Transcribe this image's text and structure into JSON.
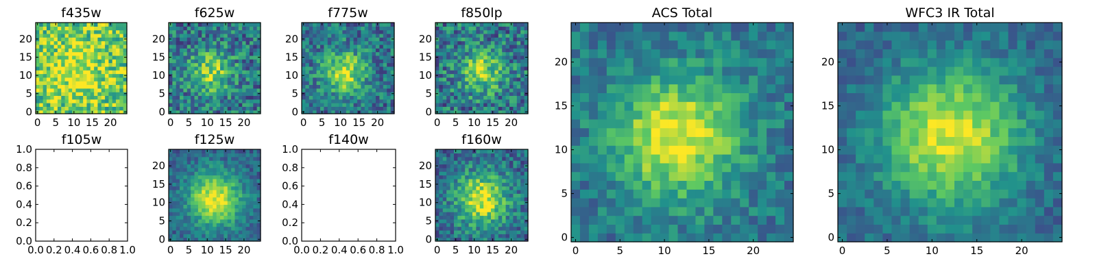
{
  "figure": {
    "colormap": [
      "#440154",
      "#3b528b",
      "#21918c",
      "#5ec962",
      "#fde725"
    ],
    "background": "#ffffff"
  },
  "chart_data": [
    {
      "type": "heatmap",
      "title": "f435w",
      "grid": 25,
      "xlim": [
        -0.5,
        24.5
      ],
      "ylim": [
        -0.5,
        24.5
      ],
      "xticks": [
        0,
        5,
        10,
        15,
        20
      ],
      "yticks": [
        0,
        5,
        10,
        15,
        20
      ],
      "source": {
        "cx": 11,
        "cy": 11,
        "sigma": 6,
        "peak": 0.25,
        "base": 0.72,
        "noise": 0.28
      }
    },
    {
      "type": "heatmap",
      "title": "f625w",
      "grid": 25,
      "xlim": [
        -0.5,
        24.5
      ],
      "ylim": [
        -0.5,
        24.5
      ],
      "xticks": [
        0,
        5,
        10,
        15,
        20
      ],
      "yticks": [
        0,
        5,
        10,
        15,
        20
      ],
      "source": {
        "cx": 11,
        "cy": 11,
        "sigma": 4,
        "peak": 0.45,
        "base": 0.4,
        "noise": 0.25
      }
    },
    {
      "type": "heatmap",
      "title": "f775w",
      "grid": 25,
      "xlim": [
        -0.5,
        24.5
      ],
      "ylim": [
        -0.5,
        24.5
      ],
      "xticks": [
        0,
        5,
        10,
        15,
        20
      ],
      "yticks": [
        0,
        5,
        10,
        15,
        20
      ],
      "source": {
        "cx": 11,
        "cy": 11,
        "sigma": 4,
        "peak": 0.55,
        "base": 0.38,
        "noise": 0.22
      }
    },
    {
      "type": "heatmap",
      "title": "f850lp",
      "grid": 25,
      "xlim": [
        -0.5,
        24.5
      ],
      "ylim": [
        -0.5,
        24.5
      ],
      "xticks": [
        0,
        5,
        10,
        15,
        20
      ],
      "yticks": [
        0,
        5,
        10,
        15,
        20
      ],
      "source": {
        "cx": 12,
        "cy": 11,
        "sigma": 4,
        "peak": 0.45,
        "base": 0.4,
        "noise": 0.26
      }
    },
    {
      "type": "empty",
      "title": "f105w",
      "xlim": [
        0.0,
        1.0
      ],
      "ylim": [
        0.0,
        1.0
      ],
      "xticks": [
        "0.0",
        "0.2",
        "0.4",
        "0.6",
        "0.8",
        "1.0"
      ],
      "yticks": [
        "0.0",
        "0.2",
        "0.4",
        "0.6",
        "0.8",
        "1.0"
      ]
    },
    {
      "type": "heatmap",
      "title": "f125w",
      "grid": 25,
      "xlim": [
        -0.5,
        24.5
      ],
      "ylim": [
        -0.5,
        24.5
      ],
      "xticks": [
        0,
        5,
        10,
        15,
        20
      ],
      "yticks": [
        0,
        5,
        10,
        15,
        20
      ],
      "source": {
        "cx": 12,
        "cy": 11,
        "sigma": 5,
        "peak": 0.65,
        "base": 0.33,
        "noise": 0.14
      }
    },
    {
      "type": "empty",
      "title": "f140w",
      "xlim": [
        0.0,
        1.0
      ],
      "ylim": [
        0.0,
        1.0
      ],
      "xticks": [
        "0.0",
        "0.2",
        "0.4",
        "0.6",
        "0.8",
        "1.0"
      ],
      "yticks": [
        "0.0",
        "0.2",
        "0.4",
        "0.6",
        "0.8",
        "1.0"
      ]
    },
    {
      "type": "heatmap",
      "title": "f160w",
      "grid": 25,
      "xlim": [
        -0.5,
        24.5
      ],
      "ylim": [
        -0.5,
        24.5
      ],
      "xticks": [
        0,
        5,
        10,
        15,
        20
      ],
      "yticks": [
        0,
        5,
        10,
        15,
        20
      ],
      "source": {
        "cx": 12,
        "cy": 11,
        "sigma": 5,
        "peak": 0.6,
        "base": 0.35,
        "noise": 0.2
      }
    },
    {
      "type": "heatmap",
      "title": "ACS Total",
      "grid": 25,
      "xlim": [
        -0.5,
        24.5
      ],
      "ylim": [
        -0.5,
        24.5
      ],
      "xticks": [
        0,
        5,
        10,
        15,
        20
      ],
      "yticks": [
        0,
        5,
        10,
        15,
        20
      ],
      "source": {
        "cx": 11.5,
        "cy": 11.5,
        "sigma": 5,
        "peak": 0.6,
        "base": 0.38,
        "noise": 0.15
      }
    },
    {
      "type": "heatmap",
      "title": "WFC3 IR Total",
      "grid": 25,
      "xlim": [
        -0.5,
        24.5
      ],
      "ylim": [
        -0.5,
        24.5
      ],
      "xticks": [
        0,
        5,
        10,
        15,
        20
      ],
      "yticks": [
        0,
        5,
        10,
        15,
        20
      ],
      "source": {
        "cx": 12,
        "cy": 11.5,
        "sigma": 5.5,
        "peak": 0.62,
        "base": 0.33,
        "noise": 0.12
      }
    }
  ]
}
